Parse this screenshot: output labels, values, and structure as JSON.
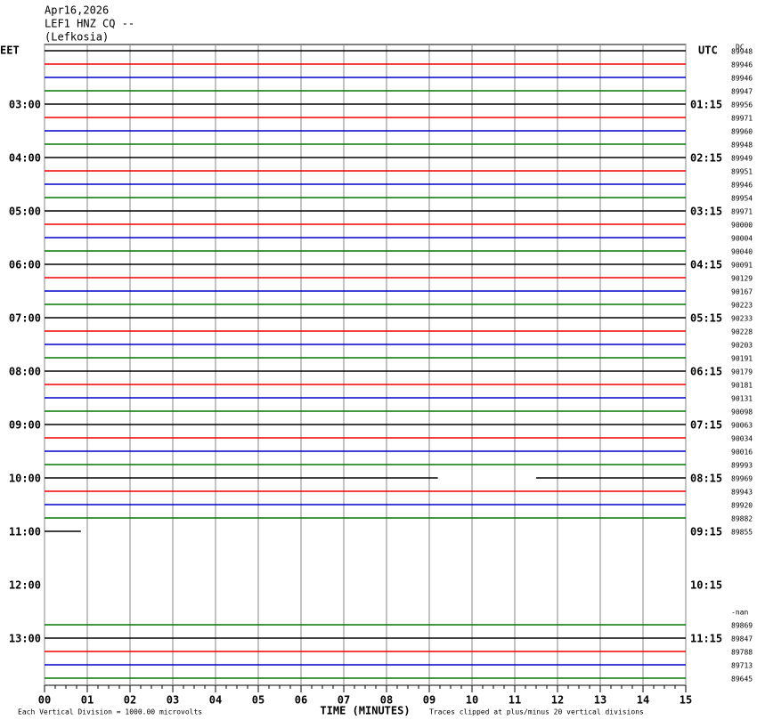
{
  "chart_data": {
    "type": "helicorder",
    "title": [
      "Apr16,2026",
      "LEF1 HNZ CQ --",
      "(Lefkosia)"
    ],
    "left_axis_label": "EET",
    "right_axis_label": "UTC",
    "top_right_label": "DC",
    "xlabel": "TIME (MINUTES)",
    "footer_left": "Each Vertical Division = 1000.00 microvolts",
    "footer_right": "Traces clipped at plus/minus 20 vertical divisions",
    "xlim": [
      0,
      15
    ],
    "xticks": [
      {
        "value": 0,
        "label": "00"
      },
      {
        "value": 1,
        "label": "01"
      },
      {
        "value": 2,
        "label": "02"
      },
      {
        "value": 3,
        "label": "03"
      },
      {
        "value": 4,
        "label": "04"
      },
      {
        "value": 5,
        "label": "05"
      },
      {
        "value": 6,
        "label": "06"
      },
      {
        "value": 7,
        "label": "07"
      },
      {
        "value": 8,
        "label": "08"
      },
      {
        "value": 9,
        "label": "09"
      },
      10,
      11,
      12,
      13,
      14,
      15
    ],
    "grid": true,
    "colors": [
      "#000000",
      "#ee0000",
      "#0000cc",
      "#007700"
    ],
    "traces": [
      {
        "label": "89948"
      },
      {
        "label": "89946"
      },
      {
        "label": "89946"
      },
      {
        "label": "89947"
      },
      {
        "label": "89956",
        "eet": "03:00",
        "utc": "01:15"
      },
      {
        "label": "89971"
      },
      {
        "label": "89960"
      },
      {
        "label": "89948"
      },
      {
        "label": "89949",
        "eet": "04:00",
        "utc": "02:15"
      },
      {
        "label": "89951"
      },
      {
        "label": "89946"
      },
      {
        "label": "89954"
      },
      {
        "label": "89971",
        "eet": "05:00",
        "utc": "03:15"
      },
      {
        "label": "90000"
      },
      {
        "label": "90004"
      },
      {
        "label": "90040"
      },
      {
        "label": "90091",
        "eet": "06:00",
        "utc": "04:15"
      },
      {
        "label": "90129"
      },
      {
        "label": "90167"
      },
      {
        "label": "90223"
      },
      {
        "label": "90233",
        "eet": "07:00",
        "utc": "05:15"
      },
      {
        "label": "90228"
      },
      {
        "label": "90203"
      },
      {
        "label": "90191"
      },
      {
        "label": "90179",
        "eet": "08:00",
        "utc": "06:15"
      },
      {
        "label": "90181"
      },
      {
        "label": "90131"
      },
      {
        "label": "90098"
      },
      {
        "label": "90063",
        "eet": "09:00",
        "utc": "07:15"
      },
      {
        "label": "90034"
      },
      {
        "label": "90016"
      },
      {
        "label": "89993"
      },
      {
        "label": "89969",
        "eet": "10:00",
        "utc": "08:15",
        "gap": [
          9.2,
          11.5
        ]
      },
      {
        "label": "89943"
      },
      {
        "label": "89920"
      },
      {
        "label": "89882"
      },
      {
        "label": "89855",
        "eet": "11:00",
        "utc": "09:15",
        "end": 0.85
      },
      {
        "end": 0
      },
      {
        "end": 0
      },
      {
        "end": 0
      },
      {
        "eet": "12:00",
        "utc": "10:15",
        "end": 0
      },
      {
        "end": 0
      },
      {
        "label": "-nan",
        "end": 0
      },
      {
        "label": "89869"
      },
      {
        "label": "89847",
        "eet": "13:00",
        "utc": "11:15"
      },
      {
        "label": "89788"
      },
      {
        "label": "89713"
      },
      {
        "label": "89645"
      }
    ]
  }
}
